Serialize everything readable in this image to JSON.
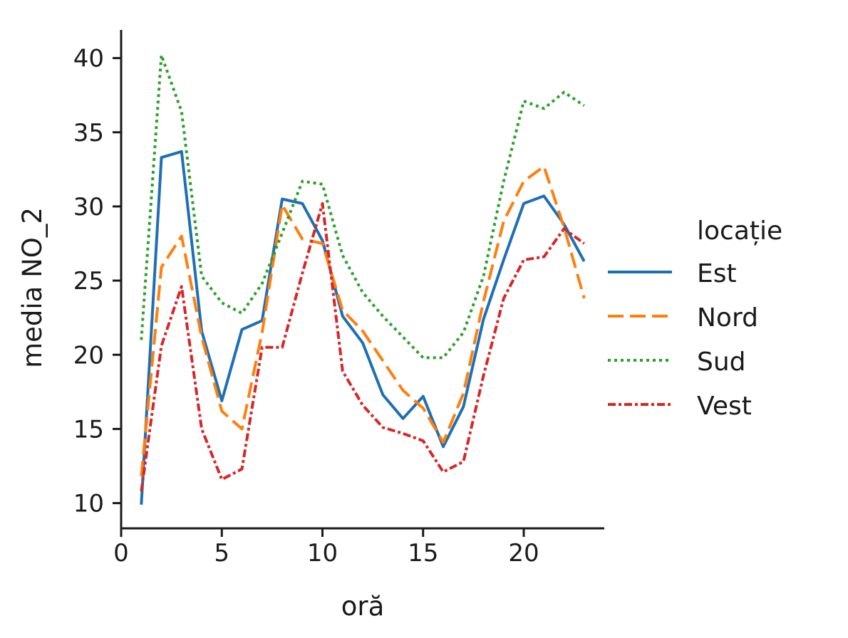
{
  "chart_data": {
    "type": "line",
    "xlabel": "oră",
    "ylabel": "media NO_2",
    "xlim": [
      0,
      24
    ],
    "ylim": [
      8.3,
      41.9
    ],
    "x_ticks": [
      0,
      5,
      10,
      15,
      20
    ],
    "y_ticks": [
      10,
      15,
      20,
      25,
      30,
      35,
      40
    ],
    "grid": false,
    "legend": {
      "title": "locație",
      "placement": "right"
    },
    "x": [
      1,
      2,
      3,
      4,
      5,
      6,
      7,
      8,
      9,
      10,
      11,
      12,
      13,
      14,
      15,
      16,
      17,
      18,
      19,
      20,
      21,
      22,
      23
    ],
    "series": [
      {
        "name": "Est",
        "color": "#1f6fb4",
        "style": "solid",
        "values": [
          9.9,
          33.3,
          33.7,
          21.6,
          16.9,
          21.7,
          22.3,
          30.5,
          30.2,
          27.7,
          22.6,
          20.8,
          17.3,
          15.7,
          17.2,
          13.8,
          16.5,
          22.4,
          26.4,
          30.2,
          30.7,
          28.8,
          26.3
        ]
      },
      {
        "name": "Nord",
        "color": "#ff7f0e",
        "style": "dashed",
        "values": [
          11.8,
          25.9,
          28.0,
          21.2,
          16.2,
          15.0,
          21.5,
          30.1,
          27.8,
          27.5,
          23.0,
          21.6,
          19.6,
          17.6,
          16.4,
          14.1,
          17.4,
          23.6,
          29.0,
          31.7,
          32.7,
          28.6,
          23.8
        ]
      },
      {
        "name": "Sud",
        "color": "#2ca02c",
        "style": "dotted",
        "values": [
          21.0,
          40.2,
          36.4,
          25.3,
          23.5,
          22.8,
          24.8,
          28.2,
          31.7,
          31.5,
          26.7,
          24.2,
          22.6,
          21.2,
          19.8,
          19.8,
          21.5,
          25.3,
          31.7,
          37.1,
          36.6,
          37.7,
          36.8
        ]
      },
      {
        "name": "Vest",
        "color": "#d62728",
        "style": "dashdot",
        "values": [
          10.8,
          20.6,
          24.6,
          15.0,
          11.6,
          12.3,
          20.5,
          20.5,
          25.5,
          30.2,
          18.9,
          16.6,
          15.1,
          14.7,
          14.2,
          12.1,
          12.8,
          18.6,
          23.8,
          26.4,
          26.6,
          28.5,
          27.5
        ]
      }
    ]
  }
}
